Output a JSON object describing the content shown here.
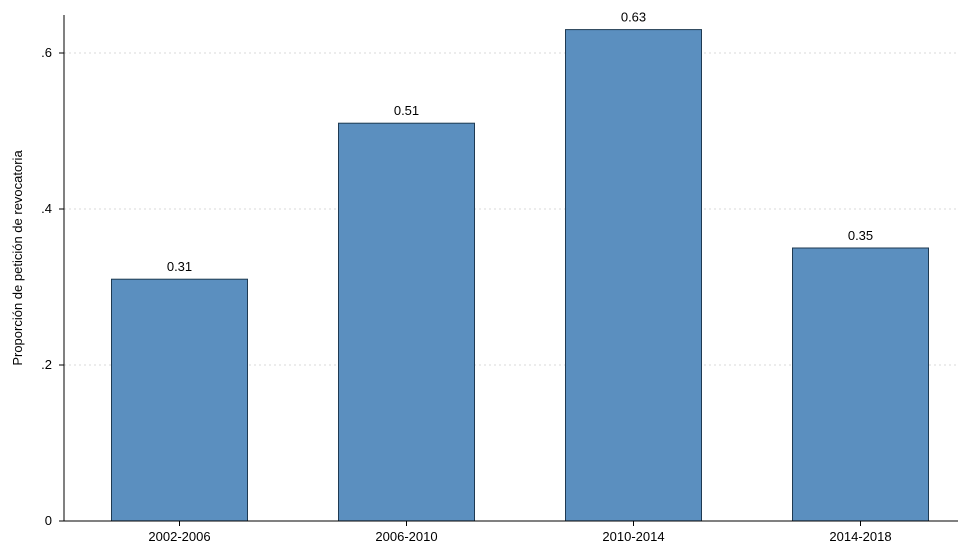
{
  "chart_data": {
    "type": "bar",
    "categories": [
      "2002-2006",
      "2006-2010",
      "2010-2014",
      "2014-2018"
    ],
    "values": [
      0.31,
      0.51,
      0.63,
      0.35
    ],
    "data_labels": [
      "0.31",
      "0.51",
      "0.63",
      "0.35"
    ],
    "title": "",
    "xlabel": "",
    "ylabel": "Proporción de petición de revocatoria",
    "ylim": [
      0,
      0.6
    ],
    "yticks": [
      0,
      0.2,
      0.4,
      0.6
    ],
    "ytick_labels": [
      "0",
      ".2",
      ".4",
      ".6"
    ],
    "grid": true,
    "bar_color": "#5b8fbf",
    "bar_edge_color": "#1f3a52"
  }
}
